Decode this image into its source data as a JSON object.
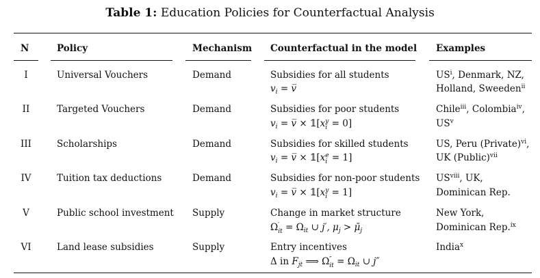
{
  "caption": {
    "label": "Table 1:",
    "text": " Education Policies for Counterfactual Analysis"
  },
  "headers": {
    "n": "N",
    "policy": "Policy",
    "mechanism": "Mechanism",
    "counterfactual": "Counterfactual in the model",
    "examples": "Examples"
  },
  "rows": [
    {
      "n": "I",
      "policy": "Universal Vouchers",
      "mechanism": "Demand",
      "cf_text": "Subsidies for all students",
      "ex_line1_a": "US",
      "ex_line1_a_sup": "i",
      "ex_line1_b": ", Denmark, NZ,",
      "ex_line2_a": "Holland, Sweeden",
      "ex_line2_a_sup": "ii"
    },
    {
      "n": "II",
      "policy": "Targeted Vouchers",
      "mechanism": "Demand",
      "cf_text": "Subsidies for poor students",
      "ex_line1_a": "Chile",
      "ex_line1_a_sup": "iii",
      "ex_line1_b": ", Colombia",
      "ex_line1_b_sup": "iv",
      "ex_line1_c": ",",
      "ex_line2_a": "US",
      "ex_line2_a_sup": "v"
    },
    {
      "n": "III",
      "policy": "Scholarships",
      "mechanism": "Demand",
      "cf_text": "Subsidies for skilled students",
      "ex_line1_a": "US, Peru (Private)",
      "ex_line1_a_sup": "vi",
      "ex_line1_b": ",",
      "ex_line2_a": "UK (Public)",
      "ex_line2_a_sup": "vii"
    },
    {
      "n": "IV",
      "policy": "Tuition tax deductions",
      "mechanism": "Demand",
      "cf_text": "Subsidies for non-poor students",
      "ex_line1_a": "US",
      "ex_line1_a_sup": "viii",
      "ex_line1_b": ", UK,",
      "ex_line2_a": "Dominican Rep."
    },
    {
      "n": "V",
      "policy": "Public school investment",
      "mechanism": "Supply",
      "cf_text": "Change in market structure",
      "ex_line1_a": "New York,",
      "ex_line2_a": "Dominican Rep.",
      "ex_line2_a_sup": "ix"
    },
    {
      "n": "VI",
      "policy": "Land lease subsidies",
      "mechanism": "Supply",
      "cf_text": "Entry incentives",
      "ex_line1_a": "India",
      "ex_line1_a_sup": "x"
    }
  ]
}
